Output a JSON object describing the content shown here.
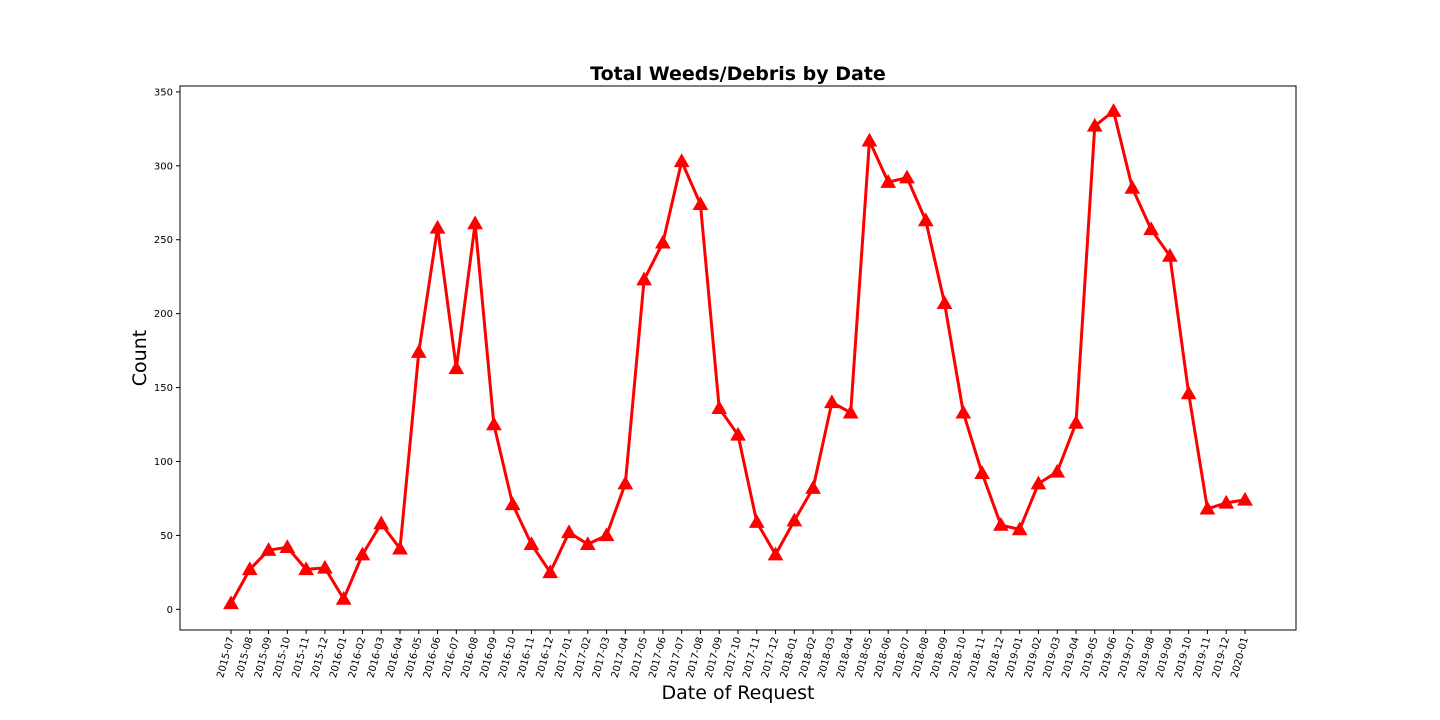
{
  "chart_data": {
    "type": "line",
    "title": "Total Weeds/Debris by Date",
    "xlabel": "Date of Request",
    "ylabel": "Count",
    "ylim": [
      -14,
      354
    ],
    "yticks": [
      0,
      50,
      100,
      150,
      200,
      250,
      300,
      350
    ],
    "ytick_labels": [
      "0",
      "50",
      "100",
      "150",
      "200",
      "250",
      "300",
      "350"
    ],
    "grid": false,
    "marker": "triangle-up",
    "line_color": "#ff0000",
    "x": [
      "2015-07",
      "2015-08",
      "2015-09",
      "2015-10",
      "2015-11",
      "2015-12",
      "2016-01",
      "2016-02",
      "2016-03",
      "2016-04",
      "2016-05",
      "2016-06",
      "2016-07",
      "2016-08",
      "2016-09",
      "2016-10",
      "2016-11",
      "2016-12",
      "2017-01",
      "2017-02",
      "2017-03",
      "2017-04",
      "2017-05",
      "2017-06",
      "2017-07",
      "2017-08",
      "2017-09",
      "2017-10",
      "2017-11",
      "2017-12",
      "2018-01",
      "2018-02",
      "2018-03",
      "2018-04",
      "2018-05",
      "2018-06",
      "2018-07",
      "2018-08",
      "2018-09",
      "2018-10",
      "2018-11",
      "2018-12",
      "2019-01",
      "2019-02",
      "2019-03",
      "2019-04",
      "2019-05",
      "2019-06",
      "2019-07",
      "2019-08",
      "2019-09",
      "2019-10",
      "2019-11",
      "2019-12",
      "2020-01"
    ],
    "series": [
      {
        "values": [
          4,
          27,
          40,
          42,
          27,
          28,
          7,
          37,
          58,
          41,
          174,
          258,
          163,
          261,
          125,
          71,
          44,
          25,
          52,
          44,
          50,
          85,
          223,
          248,
          303,
          274,
          136,
          118,
          59,
          37,
          60,
          82,
          140,
          133,
          317,
          289,
          292,
          263,
          207,
          133,
          92,
          57,
          54,
          85,
          93,
          126,
          327,
          337,
          285,
          257,
          239,
          146,
          68,
          72,
          74
        ]
      }
    ]
  }
}
